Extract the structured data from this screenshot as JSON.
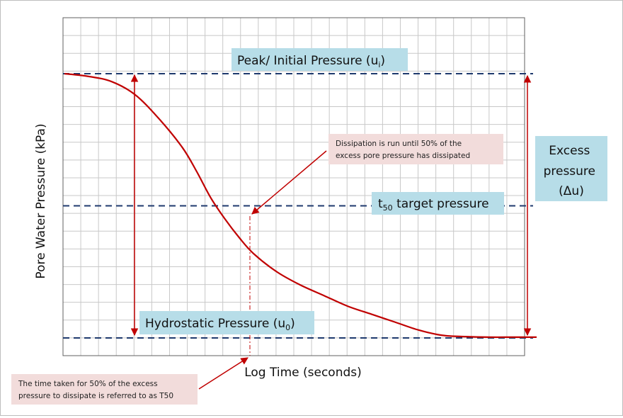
{
  "colors": {
    "curve": "#c00000",
    "dashed": "#1f3a6e",
    "grid": "#c8c8c8",
    "label_box": "#b7dde8",
    "note_box": "#f2dcdb",
    "arrow": "#c00000"
  },
  "chart_data": {
    "type": "line",
    "xlabel": "Log Time (seconds)",
    "ylabel": "Pore Water Pressure (kPa)",
    "grid": true,
    "x_scale": "log",
    "x_ticks_labeled": false,
    "y_ticks_labeled": false,
    "series": [
      {
        "values_note": "pressure normalized: 1 = peak (u_i), 0 = hydrostatic (u_0)",
        "x": [
          0,
          0.05,
          0.1,
          0.15,
          0.2,
          0.25,
          0.28,
          0.31,
          0.34,
          0.37,
          0.4,
          0.45,
          0.5,
          0.55,
          0.6,
          0.65,
          0.7,
          0.75,
          0.8,
          0.85,
          0.9,
          0.95,
          1.0
        ],
        "y": [
          1.0,
          0.99,
          0.97,
          0.92,
          0.83,
          0.72,
          0.63,
          0.53,
          0.45,
          0.38,
          0.32,
          0.25,
          0.2,
          0.16,
          0.12,
          0.09,
          0.06,
          0.03,
          0.01,
          0.005,
          0.003,
          0.003,
          0.003
        ]
      }
    ],
    "reference_lines": [
      {
        "id": "peak",
        "y": 1.0,
        "label_main": "Peak/ Initial Pressure (u",
        "label_sub": "i",
        "label_end": ")"
      },
      {
        "id": "t50",
        "y": 0.5,
        "label_main": "t",
        "label_sub": "50",
        "label_end": " target pressure"
      },
      {
        "id": "hydro",
        "y": 0.0,
        "label_main": "Hydrostatic Pressure (u",
        "label_sub": "0",
        "label_end": ")"
      }
    ],
    "annotations": {
      "excess": [
        "Excess",
        "pressure",
        "(Δu)"
      ],
      "dissipation_note": [
        "Dissipation is run until 50% of the",
        "excess pore pressure has dissipated"
      ],
      "t50_note": [
        "The time taken for 50% of the excess",
        "pressure to dissipate is referred to as T50"
      ]
    }
  }
}
